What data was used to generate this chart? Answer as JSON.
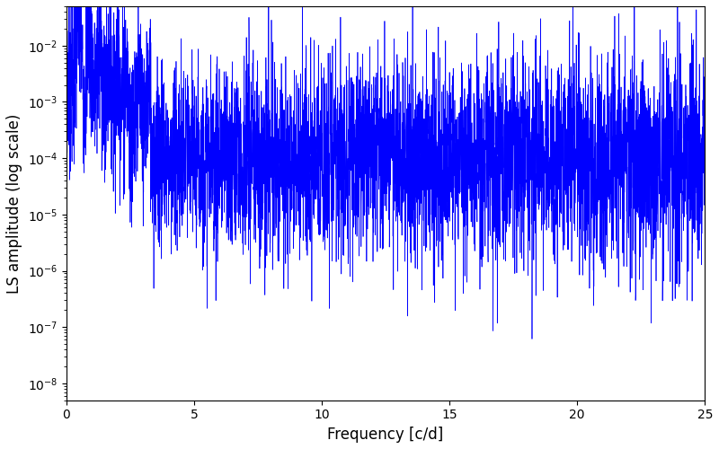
{
  "xlabel": "Frequency [c/d]",
  "ylabel": "LS amplitude (log scale)",
  "line_color": "#0000ff",
  "line_width": 0.5,
  "xlim": [
    0,
    25
  ],
  "ylim": [
    5e-09,
    0.05
  ],
  "xmin": 0.0,
  "xmax": 25.0,
  "n_points": 5000,
  "seed": 7,
  "figsize": [
    8.0,
    5.0
  ],
  "dpi": 100,
  "background_color": "#ffffff",
  "xticks": [
    0,
    5,
    10,
    15,
    20,
    25
  ]
}
